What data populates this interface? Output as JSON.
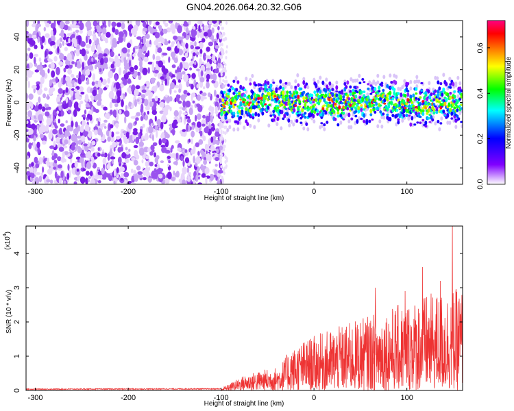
{
  "title": "GN04.2026.064.20.32.G06",
  "chart_data": [
    {
      "type": "heatmap",
      "xlabel": "Height of straight line (km)",
      "ylabel": "Frequency (Hz)",
      "xlim": [
        -310,
        160
      ],
      "ylim": [
        -50,
        50
      ],
      "xticks": [
        -300,
        -200,
        -100,
        0,
        100
      ],
      "xtick_labels": [
        "-300",
        "-200",
        "-100",
        "0",
        "100"
      ],
      "yticks": [
        -40,
        -20,
        0,
        20,
        40
      ],
      "ytick_labels": [
        "-40",
        "-20",
        "0",
        "20",
        "40"
      ],
      "noise_region_x": [
        -310,
        -98
      ],
      "signal_band_center_hz": 0,
      "signal_band_halfwidth_hz": 6,
      "colorbar": {
        "label": "Normalized spectral amplitude",
        "range": [
          0.0,
          0.72
        ],
        "ticks": [
          0.0,
          0.2,
          0.4,
          0.6
        ],
        "tick_labels": [
          "0.0",
          "0.2",
          "0.4",
          "0.6"
        ],
        "colormap": [
          "#ffffff",
          "#8000ff",
          "#0000ff",
          "#00ffff",
          "#00ff00",
          "#ffff00",
          "#ff8000",
          "#ff0000",
          "#ff0080"
        ]
      }
    },
    {
      "type": "line",
      "xlabel": "Height of straight line (km)",
      "ylabel": "SNR (10 * v/v)",
      "yscale_label": "(x10",
      "yscale_exp": "4",
      "xlim": [
        -310,
        160
      ],
      "ylim": [
        0,
        4.8
      ],
      "xticks": [
        -300,
        -200,
        -100,
        0,
        100
      ],
      "xtick_labels": [
        "-300",
        "-200",
        "-100",
        "0",
        "100"
      ],
      "yticks": [
        0,
        1,
        2,
        3,
        4
      ],
      "ytick_labels": [
        "0",
        "1",
        "2",
        "3",
        "4"
      ],
      "color": "#ee3333",
      "envelope": [
        {
          "x": -310,
          "y": 0.05
        },
        {
          "x": -100,
          "y": 0.06
        },
        {
          "x": -75,
          "y": 0.45
        },
        {
          "x": -55,
          "y": 0.6
        },
        {
          "x": -38,
          "y": 0.7
        },
        {
          "x": -28,
          "y": 1.1
        },
        {
          "x": -15,
          "y": 1.4
        },
        {
          "x": 0,
          "y": 1.6
        },
        {
          "x": 40,
          "y": 2.0
        },
        {
          "x": 80,
          "y": 2.4
        },
        {
          "x": 120,
          "y": 2.8
        },
        {
          "x": 160,
          "y": 3.0
        }
      ],
      "peaks": [
        {
          "x": -24,
          "y": 1.0
        },
        {
          "x": 66,
          "y": 3.0
        },
        {
          "x": 98,
          "y": 2.9
        },
        {
          "x": 117,
          "y": 3.6
        },
        {
          "x": 136,
          "y": 3.2
        },
        {
          "x": 149,
          "y": 4.8
        }
      ]
    }
  ]
}
